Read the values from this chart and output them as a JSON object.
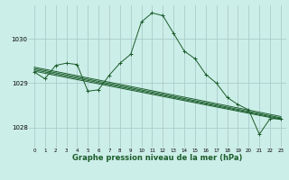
{
  "bg_color": "#cceee8",
  "grid_color": "#aacccc",
  "line_color": "#1a5c2a",
  "marker_color": "#1a5c2a",
  "xlabel": "Graphe pression niveau de la mer (hPa)",
  "xlabel_fontsize": 6.0,
  "ylim": [
    1027.55,
    1030.75
  ],
  "yticks": [
    1028,
    1029,
    1030
  ],
  "xticks": [
    0,
    1,
    2,
    3,
    4,
    5,
    6,
    7,
    8,
    9,
    10,
    11,
    12,
    13,
    14,
    15,
    16,
    17,
    18,
    19,
    20,
    21,
    22,
    23
  ],
  "series1": {
    "x": [
      0,
      1,
      2,
      3,
      4,
      5,
      6,
      7,
      8,
      9,
      10,
      11,
      12,
      13,
      14,
      15,
      16,
      17,
      18,
      19,
      20,
      21,
      22,
      23
    ],
    "y": [
      1029.25,
      1029.1,
      1029.4,
      1029.45,
      1029.42,
      1028.82,
      1028.85,
      1029.18,
      1029.45,
      1029.65,
      1030.38,
      1030.58,
      1030.52,
      1030.12,
      1029.72,
      1029.55,
      1029.2,
      1029.0,
      1028.68,
      1028.52,
      1028.4,
      1027.85,
      1028.2,
      1028.2
    ]
  },
  "series2": {
    "x": [
      0,
      23
    ],
    "y": [
      1029.27,
      1028.18
    ]
  },
  "series3": {
    "x": [
      0,
      23
    ],
    "y": [
      1029.3,
      1028.2
    ]
  },
  "series4": {
    "x": [
      0,
      23
    ],
    "y": [
      1029.33,
      1028.22
    ]
  },
  "series5": {
    "x": [
      0,
      23
    ],
    "y": [
      1029.36,
      1028.25
    ]
  }
}
